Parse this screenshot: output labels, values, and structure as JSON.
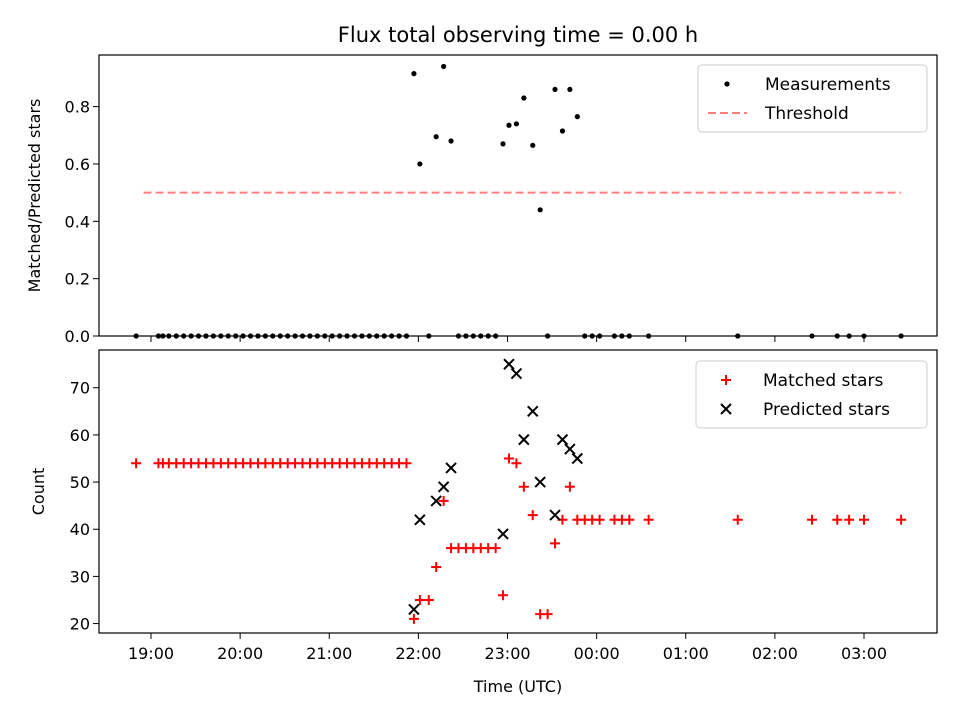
{
  "title": "Flux total observing time = 0.00 h",
  "chart_data": [
    {
      "type": "scatter",
      "ylabel": "Matched/Predicted stars",
      "ylim": [
        0,
        0.98
      ],
      "yticks": [
        0,
        0.2,
        0.4,
        0.6,
        0.8
      ],
      "ytick_labels": [
        "0.0",
        "0.2",
        "0.4",
        "0.6",
        "0.8"
      ],
      "threshold": 0.5,
      "threshold_range": [
        "18:55",
        "03:25"
      ],
      "legend": {
        "placement": "upper-right",
        "entries": [
          "Measurements",
          "Threshold"
        ]
      },
      "series": [
        {
          "name": "Measurements",
          "color": "#000000",
          "points": [
            [
              "18:50",
              0
            ],
            [
              "19:05",
              0
            ],
            [
              "19:08",
              0
            ],
            [
              "19:12",
              0
            ],
            [
              "19:17",
              0
            ],
            [
              "19:22",
              0
            ],
            [
              "19:27",
              0
            ],
            [
              "19:32",
              0
            ],
            [
              "19:37",
              0
            ],
            [
              "19:42",
              0
            ],
            [
              "19:47",
              0
            ],
            [
              "19:52",
              0
            ],
            [
              "19:57",
              0
            ],
            [
              "20:02",
              0
            ],
            [
              "20:07",
              0
            ],
            [
              "20:12",
              0
            ],
            [
              "20:17",
              0
            ],
            [
              "20:22",
              0
            ],
            [
              "20:27",
              0
            ],
            [
              "20:32",
              0
            ],
            [
              "20:37",
              0
            ],
            [
              "20:42",
              0
            ],
            [
              "20:47",
              0
            ],
            [
              "20:52",
              0
            ],
            [
              "20:57",
              0
            ],
            [
              "21:02",
              0
            ],
            [
              "21:07",
              0
            ],
            [
              "21:12",
              0
            ],
            [
              "21:17",
              0
            ],
            [
              "21:22",
              0
            ],
            [
              "21:27",
              0
            ],
            [
              "21:32",
              0
            ],
            [
              "21:37",
              0
            ],
            [
              "21:42",
              0
            ],
            [
              "21:47",
              0
            ],
            [
              "21:52",
              0
            ],
            [
              "21:57",
              0.915
            ],
            [
              "22:01",
              0.6
            ],
            [
              "22:07",
              0
            ],
            [
              "22:12",
              0.695
            ],
            [
              "22:17",
              0.94
            ],
            [
              "22:22",
              0.68
            ],
            [
              "22:27",
              0
            ],
            [
              "22:32",
              0
            ],
            [
              "22:37",
              0
            ],
            [
              "22:42",
              0
            ],
            [
              "22:47",
              0
            ],
            [
              "22:52",
              0
            ],
            [
              "22:57",
              0.67
            ],
            [
              "23:01",
              0.735
            ],
            [
              "23:06",
              0.74
            ],
            [
              "23:11",
              0.83
            ],
            [
              "23:17",
              0.665
            ],
            [
              "23:22",
              0.44
            ],
            [
              "23:27",
              0
            ],
            [
              "23:32",
              0.86
            ],
            [
              "23:37",
              0.715
            ],
            [
              "23:42",
              0.86
            ],
            [
              "23:47",
              0.765
            ],
            [
              "23:52",
              0
            ],
            [
              "23:57",
              0
            ],
            [
              "00:02",
              0
            ],
            [
              "00:12",
              0
            ],
            [
              "00:17",
              0
            ],
            [
              "00:22",
              0
            ],
            [
              "00:35",
              0
            ],
            [
              "01:35",
              0
            ],
            [
              "02:25",
              0
            ],
            [
              "02:42",
              0
            ],
            [
              "02:50",
              0
            ],
            [
              "03:00",
              0
            ],
            [
              "03:25",
              0
            ]
          ]
        }
      ]
    },
    {
      "type": "scatter",
      "xlabel": "Time (UTC)",
      "ylabel": "Count",
      "ylim": [
        18,
        78
      ],
      "yticks": [
        20,
        30,
        40,
        50,
        60,
        70
      ],
      "x_tick_labels": [
        "19:00",
        "20:00",
        "21:00",
        "22:00",
        "23:00",
        "00:00",
        "01:00",
        "02:00",
        "03:00"
      ],
      "legend": {
        "placement": "upper-right",
        "entries": [
          "Matched stars",
          "Predicted stars"
        ]
      },
      "series": [
        {
          "name": "Matched stars",
          "color": "#ff0000",
          "marker": "plus",
          "points": [
            [
              "18:50",
              54
            ],
            [
              "19:05",
              54
            ],
            [
              "19:08",
              54
            ],
            [
              "19:12",
              54
            ],
            [
              "19:17",
              54
            ],
            [
              "19:22",
              54
            ],
            [
              "19:27",
              54
            ],
            [
              "19:32",
              54
            ],
            [
              "19:37",
              54
            ],
            [
              "19:42",
              54
            ],
            [
              "19:47",
              54
            ],
            [
              "19:52",
              54
            ],
            [
              "19:57",
              54
            ],
            [
              "20:02",
              54
            ],
            [
              "20:07",
              54
            ],
            [
              "20:12",
              54
            ],
            [
              "20:17",
              54
            ],
            [
              "20:22",
              54
            ],
            [
              "20:27",
              54
            ],
            [
              "20:32",
              54
            ],
            [
              "20:37",
              54
            ],
            [
              "20:42",
              54
            ],
            [
              "20:47",
              54
            ],
            [
              "20:52",
              54
            ],
            [
              "20:57",
              54
            ],
            [
              "21:02",
              54
            ],
            [
              "21:07",
              54
            ],
            [
              "21:12",
              54
            ],
            [
              "21:17",
              54
            ],
            [
              "21:22",
              54
            ],
            [
              "21:27",
              54
            ],
            [
              "21:32",
              54
            ],
            [
              "21:37",
              54
            ],
            [
              "21:42",
              54
            ],
            [
              "21:47",
              54
            ],
            [
              "21:52",
              54
            ],
            [
              "21:57",
              21
            ],
            [
              "22:01",
              25
            ],
            [
              "22:07",
              25
            ],
            [
              "22:12",
              32
            ],
            [
              "22:17",
              46
            ],
            [
              "22:22",
              36
            ],
            [
              "22:27",
              36
            ],
            [
              "22:32",
              36
            ],
            [
              "22:37",
              36
            ],
            [
              "22:42",
              36
            ],
            [
              "22:47",
              36
            ],
            [
              "22:52",
              36
            ],
            [
              "22:57",
              26
            ],
            [
              "23:01",
              55
            ],
            [
              "23:06",
              54
            ],
            [
              "23:11",
              49
            ],
            [
              "23:17",
              43
            ],
            [
              "23:22",
              22
            ],
            [
              "23:27",
              22
            ],
            [
              "23:32",
              37
            ],
            [
              "23:37",
              42
            ],
            [
              "23:42",
              49
            ],
            [
              "23:47",
              42
            ],
            [
              "23:52",
              42
            ],
            [
              "23:57",
              42
            ],
            [
              "00:02",
              42
            ],
            [
              "00:12",
              42
            ],
            [
              "00:17",
              42
            ],
            [
              "00:22",
              42
            ],
            [
              "00:35",
              42
            ],
            [
              "01:35",
              42
            ],
            [
              "02:25",
              42
            ],
            [
              "02:42",
              42
            ],
            [
              "02:50",
              42
            ],
            [
              "03:00",
              42
            ],
            [
              "03:25",
              42
            ]
          ]
        },
        {
          "name": "Predicted stars",
          "color": "#000000",
          "marker": "x",
          "points": [
            [
              "21:57",
              23
            ],
            [
              "22:01",
              42
            ],
            [
              "22:12",
              46
            ],
            [
              "22:17",
              49
            ],
            [
              "22:22",
              53
            ],
            [
              "22:57",
              39
            ],
            [
              "23:01",
              75
            ],
            [
              "23:06",
              73
            ],
            [
              "23:11",
              59
            ],
            [
              "23:17",
              65
            ],
            [
              "23:22",
              50
            ],
            [
              "23:32",
              43
            ],
            [
              "23:37",
              59
            ],
            [
              "23:42",
              57
            ],
            [
              "23:47",
              55
            ]
          ]
        }
      ]
    }
  ]
}
